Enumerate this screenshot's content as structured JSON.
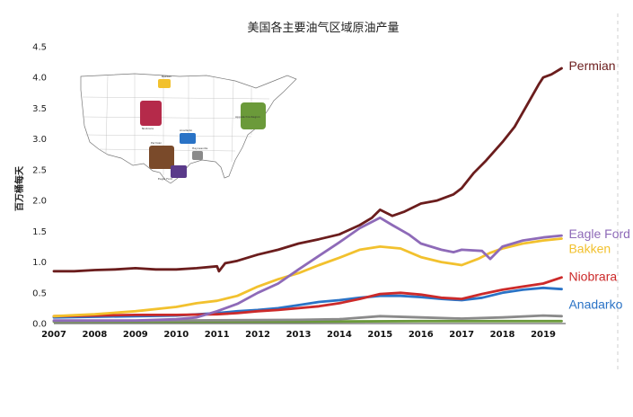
{
  "colors": {
    "permian": "#6b1d1d",
    "eagle_ford": "#8e6ab8",
    "bakken": "#f2c12e",
    "niobrara": "#cc2a2a",
    "anadarko": "#2a73c6",
    "haynesville": "#8a8a8a",
    "appalachia": "#6b9a3a"
  },
  "chart_data": {
    "type": "line",
    "title": "美国各主要油气区域原油产量",
    "ylabel": "百万桶每天",
    "xlabel": "",
    "xlim": [
      2007,
      2019.55
    ],
    "ylim": [
      0,
      4.5
    ],
    "x_ticks": [
      "2007",
      "2008",
      "2009",
      "2010",
      "2011",
      "2012",
      "2013",
      "2014",
      "2015",
      "2016",
      "2017",
      "2018",
      "2019"
    ],
    "y_ticks": [
      "0.0",
      "0.5",
      "1.0",
      "1.5",
      "2.0",
      "2.5",
      "3.0",
      "3.5",
      "4.0",
      "4.5"
    ],
    "series": [
      {
        "name": "Permian",
        "key": "permian",
        "x": [
          2007,
          2007.5,
          2008,
          2008.5,
          2009,
          2009.5,
          2010,
          2010.5,
          2011,
          2011.05,
          2011.2,
          2011.5,
          2012,
          2012.5,
          2013,
          2013.5,
          2014,
          2014.5,
          2014.8,
          2015,
          2015.3,
          2015.6,
          2016,
          2016.4,
          2016.8,
          2017,
          2017.3,
          2017.6,
          2018,
          2018.3,
          2018.6,
          2018.9,
          2019,
          2019.2,
          2019.45
        ],
        "y": [
          0.85,
          0.85,
          0.87,
          0.88,
          0.9,
          0.88,
          0.88,
          0.9,
          0.93,
          0.85,
          0.98,
          1.02,
          1.12,
          1.2,
          1.3,
          1.37,
          1.45,
          1.6,
          1.72,
          1.85,
          1.75,
          1.82,
          1.95,
          2.0,
          2.1,
          2.2,
          2.45,
          2.65,
          2.95,
          3.2,
          3.55,
          3.9,
          4.0,
          4.05,
          4.15
        ]
      },
      {
        "name": "Eagle Ford",
        "key": "eagle_ford",
        "x": [
          2007,
          2009,
          2010,
          2010.5,
          2011,
          2011.5,
          2012,
          2012.5,
          2013,
          2013.5,
          2014,
          2014.5,
          2015,
          2015.3,
          2015.7,
          2016,
          2016.5,
          2016.8,
          2017,
          2017.5,
          2017.7,
          2018,
          2018.5,
          2019,
          2019.45
        ],
        "y": [
          0.05,
          0.05,
          0.07,
          0.1,
          0.2,
          0.32,
          0.5,
          0.65,
          0.88,
          1.1,
          1.32,
          1.55,
          1.72,
          1.6,
          1.45,
          1.3,
          1.2,
          1.16,
          1.2,
          1.18,
          1.05,
          1.25,
          1.35,
          1.4,
          1.43
        ]
      },
      {
        "name": "Bakken",
        "key": "bakken",
        "x": [
          2007,
          2008,
          2009,
          2010,
          2010.5,
          2011,
          2011.5,
          2012,
          2012.5,
          2013,
          2013.5,
          2014,
          2014.5,
          2015,
          2015.5,
          2016,
          2016.5,
          2017,
          2017.4,
          2017.7,
          2018,
          2018.5,
          2019,
          2019.45
        ],
        "y": [
          0.12,
          0.15,
          0.2,
          0.27,
          0.33,
          0.37,
          0.45,
          0.6,
          0.72,
          0.82,
          0.95,
          1.07,
          1.2,
          1.25,
          1.22,
          1.08,
          1.0,
          0.95,
          1.05,
          1.15,
          1.22,
          1.3,
          1.35,
          1.38
        ]
      },
      {
        "name": "Niobrara",
        "key": "niobrara",
        "x": [
          2007,
          2008,
          2009,
          2010,
          2011,
          2011.5,
          2012,
          2012.5,
          2013,
          2013.5,
          2014,
          2014.5,
          2015,
          2015.5,
          2016,
          2016.5,
          2017,
          2017.5,
          2018,
          2018.5,
          2019,
          2019.45
        ],
        "y": [
          0.12,
          0.13,
          0.14,
          0.14,
          0.15,
          0.17,
          0.2,
          0.22,
          0.25,
          0.28,
          0.33,
          0.4,
          0.48,
          0.5,
          0.47,
          0.42,
          0.4,
          0.48,
          0.55,
          0.6,
          0.65,
          0.75
        ]
      },
      {
        "name": "Anadarko",
        "key": "anadarko",
        "x": [
          2007,
          2008,
          2009,
          2010,
          2011,
          2011.5,
          2012,
          2012.5,
          2013,
          2013.5,
          2014,
          2014.5,
          2015,
          2015.5,
          2016,
          2016.5,
          2017,
          2017.5,
          2018,
          2018.5,
          2019,
          2019.45
        ],
        "y": [
          0.1,
          0.11,
          0.12,
          0.13,
          0.17,
          0.2,
          0.22,
          0.25,
          0.3,
          0.35,
          0.38,
          0.42,
          0.45,
          0.45,
          0.43,
          0.4,
          0.38,
          0.42,
          0.5,
          0.55,
          0.58,
          0.56
        ]
      },
      {
        "name": "Haynesville",
        "key": "haynesville",
        "x": [
          2007,
          2010,
          2013,
          2014,
          2015,
          2016,
          2017,
          2018,
          2019,
          2019.45
        ],
        "y": [
          0.04,
          0.05,
          0.06,
          0.07,
          0.12,
          0.1,
          0.08,
          0.1,
          0.13,
          0.12
        ]
      },
      {
        "name": "Appalachia",
        "key": "appalachia",
        "x": [
          2007,
          2010,
          2013,
          2016,
          2019,
          2019.45
        ],
        "y": [
          0.03,
          0.03,
          0.03,
          0.04,
          0.04,
          0.04
        ]
      }
    ],
    "labeled_series": [
      "Permian",
      "Eagle Ford",
      "Bakken",
      "Niobrara",
      "Anadarko"
    ]
  },
  "inset_map": {
    "labels": [
      "Bakken",
      "Niobrara",
      "Anadarko",
      "Permian",
      "Haynesville",
      "Eagle Ford",
      "Appalachia Region"
    ]
  }
}
